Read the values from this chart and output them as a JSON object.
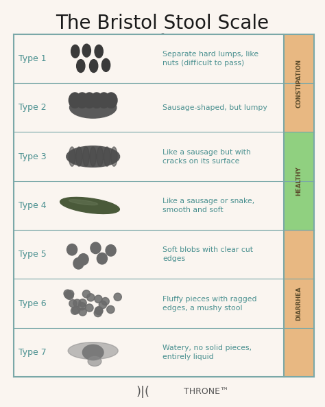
{
  "title": "The Bristol Stool Scale",
  "background_color": "#faf5f0",
  "border_color": "#7aa8a8",
  "title_color": "#1a1a1a",
  "type_label_color": "#4a9090",
  "description_color": "#4a9090",
  "sidebar_constipation_color": "#e8b882",
  "sidebar_healthy_color": "#90d080",
  "sidebar_diarrhea_color": "#e8b882",
  "sidebar_text_color": "#5a4a2a",
  "rows": [
    {
      "label": "Type 1",
      "description": "Separate hard lumps, like\nnuts (difficult to pass)",
      "category": "constipation"
    },
    {
      "label": "Type 2",
      "description": "Sausage-shaped, but lumpy",
      "category": "constipation"
    },
    {
      "label": "Type 3",
      "description": "Like a sausage but with\ncracks on its surface",
      "category": "healthy"
    },
    {
      "label": "Type 4",
      "description": "Like a sausage or snake,\nsmooth and soft",
      "category": "healthy"
    },
    {
      "label": "Type 5",
      "description": "Soft blobs with clear cut\nedges",
      "category": "diarrhea"
    },
    {
      "label": "Type 6",
      "description": "Fluffy pieces with ragged\nedges, a mushy stool",
      "category": "diarrhea"
    },
    {
      "label": "Type 7",
      "description": "Watery, no solid pieces,\nentirely liquid",
      "category": "diarrhea"
    }
  ],
  "footer_text": "THRONE",
  "figsize": [
    4.74,
    5.93
  ],
  "dpi": 100
}
